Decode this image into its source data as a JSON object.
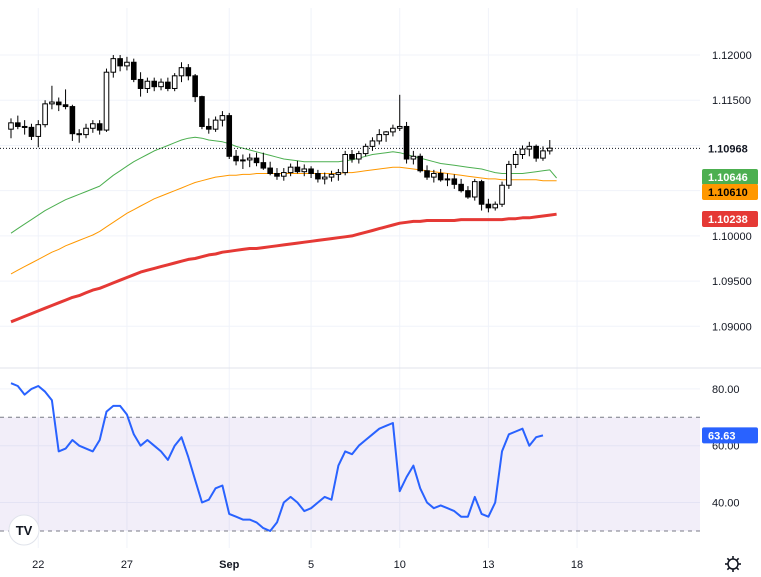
{
  "chart_data": {
    "type": "candlestick",
    "x_tick_labels": [
      {
        "label": "22",
        "index": 4
      },
      {
        "label": "27",
        "index": 17
      },
      {
        "label": "Sep",
        "index": 32
      },
      {
        "label": "5",
        "index": 44
      },
      {
        "label": "10",
        "index": 57
      },
      {
        "label": "13",
        "index": 70
      },
      {
        "label": "18",
        "index": 83
      }
    ],
    "x_tick_bold": [
      "Sep"
    ],
    "price_axis": {
      "ylim": [
        1.0855,
        1.1252
      ],
      "ticks": [
        "1.12000",
        "1.11500",
        "1.11000",
        "1.10500",
        "1.10000",
        "1.09500",
        "1.09000"
      ]
    },
    "last_price": {
      "value": 1.10968,
      "label": "1.10968",
      "color": "#131722"
    },
    "series": [
      {
        "kind": "ohlc",
        "up_color": "#ffffff",
        "down_color": "#000000",
        "ohlc": [
          [
            1.1118,
            1.113,
            1.1108,
            1.1125
          ],
          [
            1.1125,
            1.1133,
            1.1118,
            1.1121
          ],
          [
            1.1121,
            1.1128,
            1.1112,
            1.112
          ],
          [
            1.112,
            1.1124,
            1.1106,
            1.111
          ],
          [
            1.111,
            1.1128,
            1.1098,
            1.1123
          ],
          [
            1.1123,
            1.115,
            1.112,
            1.1146
          ],
          [
            1.1146,
            1.1166,
            1.114,
            1.1148
          ],
          [
            1.1148,
            1.1153,
            1.1138,
            1.1145
          ],
          [
            1.1145,
            1.1162,
            1.114,
            1.1143
          ],
          [
            1.1143,
            1.1145,
            1.1105,
            1.1113
          ],
          [
            1.1113,
            1.1118,
            1.1103,
            1.1112
          ],
          [
            1.1112,
            1.1124,
            1.1108,
            1.1119
          ],
          [
            1.1119,
            1.1128,
            1.1114,
            1.1124
          ],
          [
            1.1124,
            1.1128,
            1.1112,
            1.1117
          ],
          [
            1.1117,
            1.1185,
            1.1115,
            1.1181
          ],
          [
            1.1181,
            1.12,
            1.1175,
            1.1196
          ],
          [
            1.1196,
            1.12,
            1.1182,
            1.1188
          ],
          [
            1.1188,
            1.1198,
            1.1183,
            1.1192
          ],
          [
            1.1192,
            1.1196,
            1.117,
            1.1173
          ],
          [
            1.1173,
            1.1181,
            1.1154,
            1.1163
          ],
          [
            1.1163,
            1.1175,
            1.1158,
            1.1171
          ],
          [
            1.1171,
            1.1175,
            1.116,
            1.1165
          ],
          [
            1.1165,
            1.1174,
            1.1161,
            1.117
          ],
          [
            1.117,
            1.1175,
            1.116,
            1.1163
          ],
          [
            1.1163,
            1.118,
            1.116,
            1.1177
          ],
          [
            1.1177,
            1.1192,
            1.117,
            1.1186
          ],
          [
            1.1186,
            1.119,
            1.1172,
            1.1177
          ],
          [
            1.1177,
            1.1179,
            1.1148,
            1.1154
          ],
          [
            1.1154,
            1.1155,
            1.1118,
            1.1121
          ],
          [
            1.1121,
            1.113,
            1.1113,
            1.1118
          ],
          [
            1.1118,
            1.1132,
            1.1115,
            1.1128
          ],
          [
            1.1128,
            1.1138,
            1.1121,
            1.1133
          ],
          [
            1.1133,
            1.1136,
            1.1085,
            1.1088
          ],
          [
            1.1088,
            1.1095,
            1.1078,
            1.1083
          ],
          [
            1.1083,
            1.109,
            1.1074,
            1.1084
          ],
          [
            1.1084,
            1.1091,
            1.1076,
            1.1086
          ],
          [
            1.1086,
            1.1092,
            1.1077,
            1.1081
          ],
          [
            1.1081,
            1.1092,
            1.1073,
            1.1075
          ],
          [
            1.1075,
            1.1082,
            1.1067,
            1.1069
          ],
          [
            1.1069,
            1.1075,
            1.1062,
            1.1066
          ],
          [
            1.1066,
            1.1075,
            1.1061,
            1.107
          ],
          [
            1.107,
            1.108,
            1.1066,
            1.1076
          ],
          [
            1.1076,
            1.1083,
            1.1069,
            1.1071
          ],
          [
            1.1071,
            1.1079,
            1.1066,
            1.1074
          ],
          [
            1.1074,
            1.1077,
            1.1064,
            1.1069
          ],
          [
            1.1069,
            1.1073,
            1.1059,
            1.1063
          ],
          [
            1.1063,
            1.107,
            1.1057,
            1.1065
          ],
          [
            1.1065,
            1.1072,
            1.106,
            1.1068
          ],
          [
            1.1068,
            1.1074,
            1.1061,
            1.107
          ],
          [
            1.107,
            1.1094,
            1.1067,
            1.109
          ],
          [
            1.109,
            1.1095,
            1.1081,
            1.1085
          ],
          [
            1.1085,
            1.1094,
            1.108,
            1.1091
          ],
          [
            1.1091,
            1.1102,
            1.1088,
            1.1099
          ],
          [
            1.1099,
            1.1109,
            1.1094,
            1.1105
          ],
          [
            1.1105,
            1.1118,
            1.1101,
            1.1112
          ],
          [
            1.1112,
            1.1116,
            1.1104,
            1.1115
          ],
          [
            1.1115,
            1.1123,
            1.111,
            1.1119
          ],
          [
            1.1119,
            1.1156,
            1.1116,
            1.1121
          ],
          [
            1.1121,
            1.1126,
            1.108,
            1.1085
          ],
          [
            1.1085,
            1.1094,
            1.1079,
            1.1088
          ],
          [
            1.1088,
            1.1091,
            1.107,
            1.1072
          ],
          [
            1.1072,
            1.1078,
            1.1062,
            1.1065
          ],
          [
            1.1065,
            1.1073,
            1.1059,
            1.1069
          ],
          [
            1.1069,
            1.1074,
            1.106,
            1.1062
          ],
          [
            1.1062,
            1.1069,
            1.1055,
            1.1063
          ],
          [
            1.1063,
            1.1068,
            1.1052,
            1.1057
          ],
          [
            1.1057,
            1.1063,
            1.1048,
            1.105
          ],
          [
            1.105,
            1.1055,
            1.1041,
            1.1043
          ],
          [
            1.1043,
            1.1063,
            1.1039,
            1.106
          ],
          [
            1.106,
            1.1062,
            1.1028,
            1.1035
          ],
          [
            1.1035,
            1.1041,
            1.1026,
            1.1031
          ],
          [
            1.1031,
            1.1038,
            1.1028,
            1.1035
          ],
          [
            1.1035,
            1.106,
            1.1032,
            1.1056
          ],
          [
            1.1056,
            1.1083,
            1.1052,
            1.1079
          ],
          [
            1.1079,
            1.1094,
            1.1075,
            1.109
          ],
          [
            1.109,
            1.11,
            1.1085,
            1.1096
          ],
          [
            1.1096,
            1.1104,
            1.1088,
            1.1099
          ],
          [
            1.1099,
            1.1101,
            1.1082,
            1.1086
          ],
          [
            1.1086,
            1.1099,
            1.1083,
            1.1094
          ],
          [
            1.1094,
            1.1106,
            1.109,
            1.1097
          ]
        ]
      },
      {
        "kind": "line",
        "color": "#4caf50",
        "width": 1,
        "values": [
          1.1003,
          1.1008,
          1.1013,
          1.1018,
          1.1023,
          1.1028,
          1.1032,
          1.1036,
          1.104,
          1.1043,
          1.1046,
          1.1049,
          1.1052,
          1.1055,
          1.1061,
          1.1067,
          1.1072,
          1.1077,
          1.1082,
          1.1086,
          1.109,
          1.1094,
          1.1097,
          1.11,
          1.1103,
          1.1106,
          1.1108,
          1.1109,
          1.1108,
          1.1106,
          1.1105,
          1.1104,
          1.1102,
          1.1099,
          1.1097,
          1.1095,
          1.1093,
          1.1091,
          1.1089,
          1.1087,
          1.1085,
          1.1084,
          1.1083,
          1.1082,
          1.1082,
          1.1082,
          1.1082,
          1.1082,
          1.1082,
          1.1083,
          1.1084,
          1.1086,
          1.1088,
          1.109,
          1.1091,
          1.1092,
          1.1093,
          1.1092,
          1.109,
          1.1088,
          1.1086,
          1.1084,
          1.1082,
          1.108,
          1.1079,
          1.1078,
          1.1077,
          1.1076,
          1.1075,
          1.1074,
          1.1072,
          1.107,
          1.1069,
          1.1069,
          1.1069,
          1.1069,
          1.107,
          1.1071,
          1.1072,
          1.1073,
          1.1064
        ]
      },
      {
        "kind": "line",
        "color": "#ff9800",
        "width": 1,
        "values": [
          1.0958,
          1.0962,
          1.0966,
          1.097,
          1.0974,
          1.0978,
          1.0982,
          1.0985,
          1.0989,
          1.0992,
          1.0995,
          1.0998,
          1.1001,
          1.1005,
          1.101,
          1.1015,
          1.102,
          1.1025,
          1.1029,
          1.1033,
          1.1037,
          1.1041,
          1.1044,
          1.1047,
          1.105,
          1.1053,
          1.1056,
          1.1059,
          1.1061,
          1.1063,
          1.1065,
          1.1066,
          1.1067,
          1.1067,
          1.1068,
          1.1068,
          1.1069,
          1.1069,
          1.1069,
          1.1069,
          1.1069,
          1.1069,
          1.1069,
          1.1069,
          1.1069,
          1.1069,
          1.1069,
          1.1069,
          1.1069,
          1.107,
          1.107,
          1.1071,
          1.1072,
          1.1073,
          1.1074,
          1.1075,
          1.1076,
          1.1076,
          1.1075,
          1.1074,
          1.1073,
          1.1072,
          1.1071,
          1.107,
          1.1069,
          1.1068,
          1.1067,
          1.1066,
          1.1065,
          1.1064,
          1.1063,
          1.1063,
          1.1062,
          1.1062,
          1.1062,
          1.1062,
          1.1062,
          1.1062,
          1.1061,
          1.1061,
          1.1061
        ]
      },
      {
        "kind": "line",
        "color": "#e53935",
        "width": 3,
        "values": [
          1.0905,
          1.0908,
          1.0911,
          1.0914,
          1.0917,
          1.092,
          1.0923,
          1.0926,
          1.0929,
          1.0932,
          1.0934,
          1.0937,
          1.094,
          1.0942,
          1.0945,
          1.0948,
          1.0951,
          1.0954,
          1.0957,
          1.096,
          1.0962,
          1.0964,
          1.0966,
          1.0968,
          1.097,
          1.0972,
          1.0974,
          1.0975,
          1.0977,
          1.0979,
          1.098,
          1.0982,
          1.0983,
          1.0984,
          1.0985,
          1.0986,
          1.0986,
          1.0987,
          1.0988,
          1.0989,
          1.099,
          1.0991,
          1.0992,
          1.0993,
          1.0994,
          1.0995,
          1.0996,
          1.0997,
          1.0998,
          1.0999,
          1.1,
          1.1002,
          1.1004,
          1.1006,
          1.1008,
          1.101,
          1.1012,
          1.1014,
          1.1015,
          1.1016,
          1.1016,
          1.1017,
          1.1017,
          1.1017,
          1.1017,
          1.1017,
          1.1018,
          1.1018,
          1.1018,
          1.1018,
          1.1018,
          1.1018,
          1.1018,
          1.1019,
          1.1019,
          1.102,
          1.102,
          1.1021,
          1.1022,
          1.1023,
          1.1024
        ]
      }
    ],
    "price_tags": [
      {
        "label": "1.10646",
        "value": 1.10646,
        "bg": "#4caf50",
        "fg": "#ffffff"
      },
      {
        "label": "1.10610",
        "value": 1.1061,
        "bg": "#ff9800",
        "fg": "#000000"
      },
      {
        "label": "1.10238",
        "value": 1.10238,
        "bg": "#e53935",
        "fg": "#ffffff"
      }
    ],
    "rsi": {
      "ylim": [
        24,
        87
      ],
      "ticks": [
        "80.00",
        "60.00",
        "40.00"
      ],
      "band": [
        70,
        30
      ],
      "band_color": "#7e57c2",
      "line_color": "#2962ff",
      "last": {
        "value": 63.63,
        "label": "63.63",
        "bg": "#2962ff",
        "fg": "#ffffff"
      },
      "values": [
        82,
        81,
        78,
        80,
        81,
        79,
        76,
        58,
        59,
        62,
        60,
        59,
        58,
        62,
        72,
        74,
        74,
        71,
        64,
        60,
        62,
        60,
        58,
        55,
        60,
        63,
        56,
        48,
        40,
        41,
        45,
        46,
        36,
        35,
        34,
        34,
        33,
        31,
        30,
        33,
        40,
        42,
        40,
        37,
        38,
        40,
        42,
        41,
        53,
        58,
        57,
        60,
        62,
        64,
        66,
        67,
        68,
        44,
        49,
        53,
        45,
        40,
        38,
        39,
        38,
        37,
        35,
        35,
        42,
        36,
        35,
        40,
        58,
        64,
        65,
        66,
        60,
        63,
        63.63
      ]
    },
    "logo": "TV"
  },
  "settings_icon": "gear-icon"
}
